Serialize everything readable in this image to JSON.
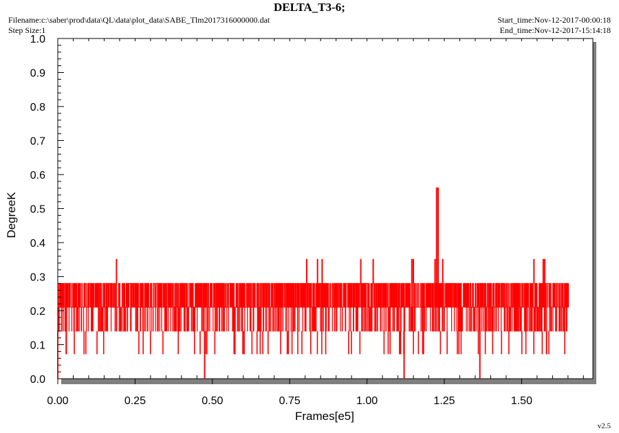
{
  "header": {
    "title": "DELTA_T3-6;",
    "filename": "Filename:c:\\saber\\prod\\data\\QL\\data\\plot_data\\SABE_Tlm2017316000000.dat",
    "step_size": "Step Size:1",
    "start_time": "Start_time:Nov-12-2017-00:00:18",
    "end_time": "End_time:Nov-12-2017-15:14:18",
    "version": "v2.5"
  },
  "colors": {
    "series": "#ff0000",
    "axis": "#000000",
    "shadow": "#7f7f7f"
  },
  "chart_data": {
    "type": "line",
    "title": "DELTA_T3-6;",
    "xlabel": "Frames[e5]",
    "ylabel": "DegreeK",
    "xlim": [
      0.0,
      1.72
    ],
    "ylim": [
      0.0,
      1.0
    ],
    "x_ticks": [
      "0.00",
      "0.25",
      "0.50",
      "0.75",
      "1.00",
      "1.25",
      "1.50"
    ],
    "y_ticks": [
      "0.0",
      "0.1",
      "0.2",
      "0.3",
      "0.4",
      "0.5",
      "0.6",
      "0.7",
      "0.8",
      "0.9",
      "1.0"
    ],
    "grid": false,
    "series": [
      {
        "levels": [
          0.14,
          0.21,
          0.28
        ],
        "band_x_range": [
          0.0,
          1.652
        ],
        "spikes": [
          {
            "x": 0.19,
            "y": 0.352
          },
          {
            "x": 0.805,
            "y": 0.352
          },
          {
            "x": 0.84,
            "y": 0.352
          },
          {
            "x": 0.855,
            "y": 0.352
          },
          {
            "x": 0.98,
            "y": 0.352
          },
          {
            "x": 1.02,
            "y": 0.352
          },
          {
            "x": 1.145,
            "y": 0.352
          },
          {
            "x": 1.15,
            "y": 0.352
          },
          {
            "x": 1.22,
            "y": 0.352
          },
          {
            "x": 1.225,
            "y": 0.562
          },
          {
            "x": 1.23,
            "y": 0.562
          },
          {
            "x": 1.245,
            "y": 0.352
          },
          {
            "x": 1.54,
            "y": 0.352
          },
          {
            "x": 1.57,
            "y": 0.352
          },
          {
            "x": 1.575,
            "y": 0.352
          }
        ],
        "dips": [
          {
            "x": 0.0,
            "y": 0.0
          },
          {
            "x": 0.475,
            "y": 0.0
          },
          {
            "x": 1.12,
            "y": 0.0
          },
          {
            "x": 1.365,
            "y": 0.0
          }
        ]
      }
    ]
  }
}
